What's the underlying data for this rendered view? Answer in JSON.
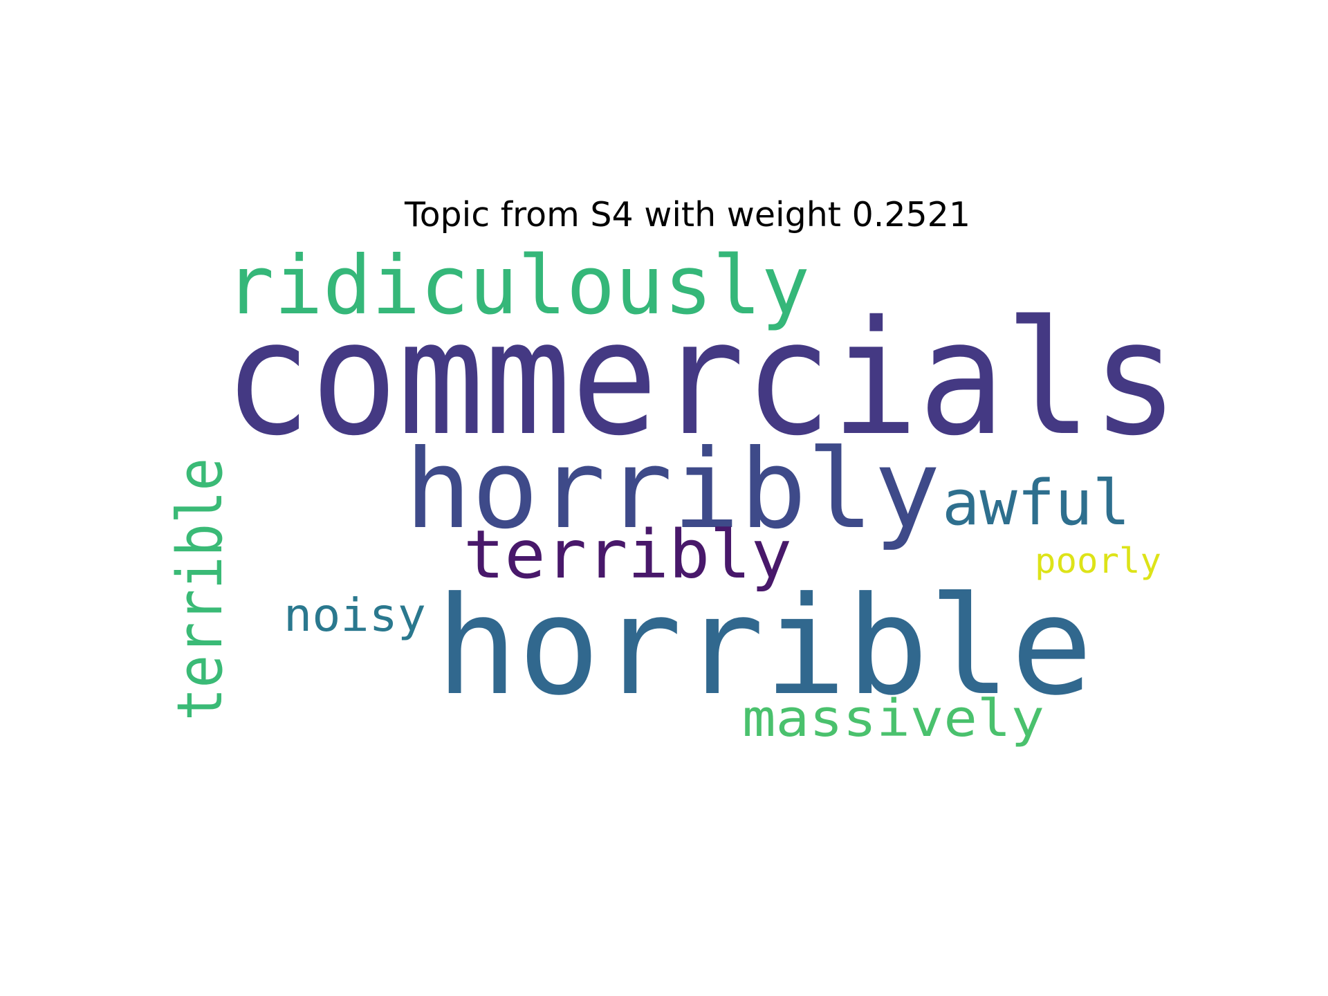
{
  "chart_data": {
    "type": "wordcloud",
    "title": "Topic from S4 with weight 0.2521",
    "words": [
      {
        "text": "commercials",
        "rank": 1,
        "color": "#443983"
      },
      {
        "text": "horrible",
        "rank": 2,
        "color": "#31688e"
      },
      {
        "text": "horribly",
        "rank": 3,
        "color": "#3e4a89"
      },
      {
        "text": "ridiculously",
        "rank": 4,
        "color": "#35b779"
      },
      {
        "text": "awful",
        "rank": 5,
        "color": "#2e6f8e"
      },
      {
        "text": "terrible",
        "rank": 6,
        "color": "#3aba76"
      },
      {
        "text": "terribly",
        "rank": 7,
        "color": "#48186a"
      },
      {
        "text": "massively",
        "rank": 8,
        "color": "#4ac16d"
      },
      {
        "text": "noisy",
        "rank": 9,
        "color": "#2a788e"
      },
      {
        "text": "poorly",
        "rank": 10,
        "color": "#dde318"
      }
    ]
  }
}
